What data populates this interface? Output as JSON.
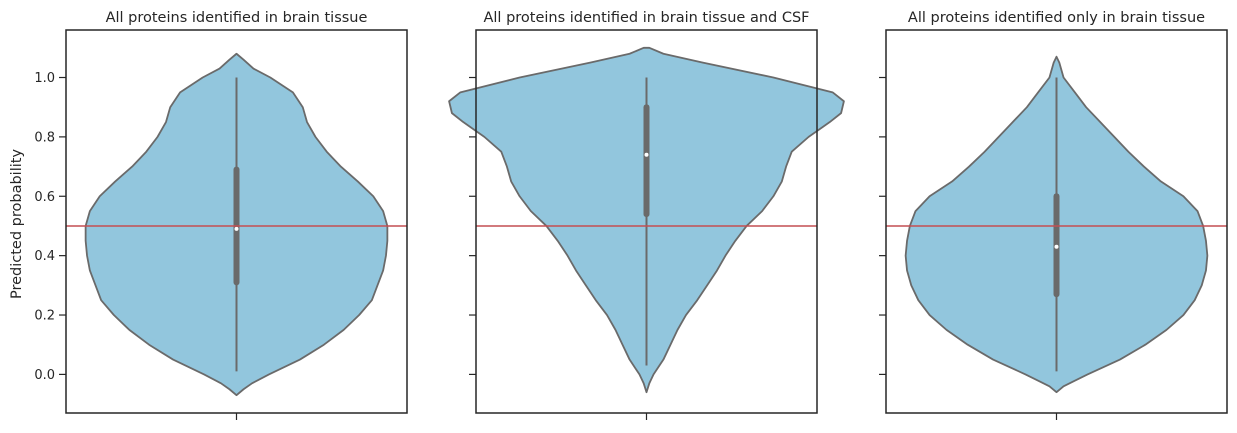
{
  "chart_data": {
    "type": "violin",
    "ylabel": "Predicted probability",
    "ylim": [
      -0.13,
      1.16
    ],
    "yticks": [
      0.0,
      0.2,
      0.4,
      0.6,
      0.8,
      1.0
    ],
    "reference_line": {
      "y": 0.5,
      "color": "#c44e52"
    },
    "violin_color": "#92c6dd",
    "edge_color": "#6a6a6a",
    "panels": [
      {
        "title": "All proteins identified in brain tissue",
        "median": 0.49,
        "q1": 0.31,
        "q3": 0.69,
        "min": 0.01,
        "max": 1.0,
        "density": [
          [
            -0.07,
            0.0
          ],
          [
            -0.05,
            0.05
          ],
          [
            -0.03,
            0.11
          ],
          [
            0.0,
            0.23
          ],
          [
            0.05,
            0.45
          ],
          [
            0.1,
            0.62
          ],
          [
            0.15,
            0.76
          ],
          [
            0.2,
            0.87
          ],
          [
            0.25,
            0.96
          ],
          [
            0.3,
            1.0
          ],
          [
            0.35,
            1.04
          ],
          [
            0.4,
            1.06
          ],
          [
            0.45,
            1.07
          ],
          [
            0.5,
            1.07
          ],
          [
            0.55,
            1.04
          ],
          [
            0.6,
            0.97
          ],
          [
            0.65,
            0.86
          ],
          [
            0.7,
            0.74
          ],
          [
            0.75,
            0.64
          ],
          [
            0.8,
            0.56
          ],
          [
            0.85,
            0.5
          ],
          [
            0.9,
            0.47
          ],
          [
            0.95,
            0.4
          ],
          [
            1.0,
            0.24
          ],
          [
            1.03,
            0.12
          ],
          [
            1.06,
            0.05
          ],
          [
            1.08,
            0.0
          ]
        ]
      },
      {
        "title": "All proteins identified in brain tissue and CSF",
        "median": 0.74,
        "q1": 0.54,
        "q3": 0.9,
        "min": 0.03,
        "max": 1.0,
        "density": [
          [
            -0.06,
            0.0
          ],
          [
            -0.03,
            0.02
          ],
          [
            0.0,
            0.05
          ],
          [
            0.05,
            0.12
          ],
          [
            0.1,
            0.17
          ],
          [
            0.15,
            0.22
          ],
          [
            0.2,
            0.28
          ],
          [
            0.25,
            0.36
          ],
          [
            0.3,
            0.43
          ],
          [
            0.35,
            0.5
          ],
          [
            0.4,
            0.56
          ],
          [
            0.45,
            0.63
          ],
          [
            0.5,
            0.71
          ],
          [
            0.55,
            0.82
          ],
          [
            0.6,
            0.9
          ],
          [
            0.65,
            0.96
          ],
          [
            0.7,
            0.99
          ],
          [
            0.75,
            1.03
          ],
          [
            0.8,
            1.15
          ],
          [
            0.85,
            1.3
          ],
          [
            0.88,
            1.38
          ],
          [
            0.92,
            1.4
          ],
          [
            0.95,
            1.32
          ],
          [
            1.0,
            0.9
          ],
          [
            1.05,
            0.4
          ],
          [
            1.08,
            0.12
          ],
          [
            1.1,
            0.02
          ],
          [
            1.1,
            0.0
          ]
        ]
      },
      {
        "title": "All proteins identified only in brain tissue",
        "median": 0.43,
        "q1": 0.27,
        "q3": 0.6,
        "min": 0.01,
        "max": 1.0,
        "density": [
          [
            -0.06,
            0.0
          ],
          [
            -0.04,
            0.05
          ],
          [
            0.0,
            0.22
          ],
          [
            0.05,
            0.45
          ],
          [
            0.1,
            0.63
          ],
          [
            0.15,
            0.78
          ],
          [
            0.2,
            0.9
          ],
          [
            0.25,
            0.98
          ],
          [
            0.3,
            1.03
          ],
          [
            0.35,
            1.06
          ],
          [
            0.4,
            1.07
          ],
          [
            0.45,
            1.06
          ],
          [
            0.5,
            1.04
          ],
          [
            0.55,
            1.0
          ],
          [
            0.6,
            0.9
          ],
          [
            0.65,
            0.74
          ],
          [
            0.7,
            0.62
          ],
          [
            0.75,
            0.51
          ],
          [
            0.8,
            0.41
          ],
          [
            0.85,
            0.31
          ],
          [
            0.9,
            0.21
          ],
          [
            0.95,
            0.13
          ],
          [
            1.0,
            0.05
          ],
          [
            1.05,
            0.02
          ],
          [
            1.07,
            0.0
          ]
        ]
      }
    ]
  }
}
